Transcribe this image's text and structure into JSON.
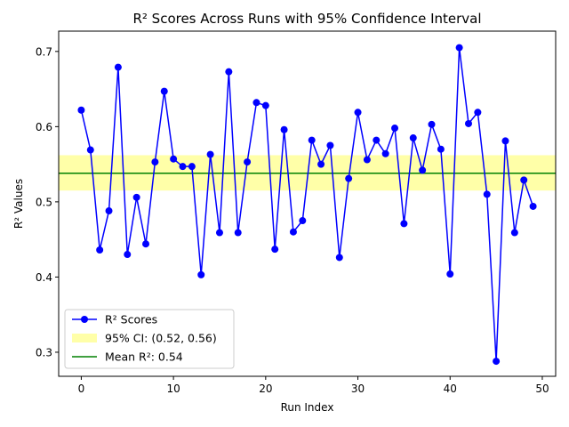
{
  "chart_data": {
    "type": "line",
    "title": "R² Scores Across Runs with 95% Confidence Interval",
    "xlabel": "Run Index",
    "ylabel": "R² Values",
    "xlim": [
      -2.45,
      51.45
    ],
    "ylim": [
      0.268,
      0.727
    ],
    "xticks": [
      0,
      10,
      20,
      30,
      40,
      50
    ],
    "yticks": [
      0.3,
      0.4,
      0.5,
      0.6,
      0.7
    ],
    "grid": false,
    "legend_position": "lower-left",
    "series": [
      {
        "name": "R² Scores",
        "color": "#0000ff",
        "marker": "circle",
        "x": [
          0,
          1,
          2,
          3,
          4,
          5,
          6,
          7,
          8,
          9,
          10,
          11,
          12,
          13,
          14,
          15,
          16,
          17,
          18,
          19,
          20,
          21,
          22,
          23,
          24,
          25,
          26,
          27,
          28,
          29,
          30,
          31,
          32,
          33,
          34,
          35,
          36,
          37,
          38,
          39,
          40,
          41,
          42,
          43,
          44,
          45,
          46,
          47,
          48,
          49
        ],
        "values": [
          0.622,
          0.569,
          0.436,
          0.488,
          0.679,
          0.43,
          0.506,
          0.444,
          0.553,
          0.647,
          0.557,
          0.547,
          0.547,
          0.403,
          0.563,
          0.459,
          0.673,
          0.459,
          0.553,
          0.632,
          0.628,
          0.437,
          0.596,
          0.46,
          0.475,
          0.582,
          0.55,
          0.575,
          0.426,
          0.531,
          0.619,
          0.556,
          0.582,
          0.564,
          0.598,
          0.471,
          0.585,
          0.542,
          0.603,
          0.57,
          0.404,
          0.705,
          0.604,
          0.619,
          0.51,
          0.288,
          0.581,
          0.459,
          0.529,
          0.494
        ]
      }
    ],
    "confidence_interval": {
      "label": "95% CI: (0.52, 0.56)",
      "lower": 0.515,
      "upper": 0.562,
      "color": "#ffff99"
    },
    "mean_line": {
      "label": "Mean R²: 0.54",
      "value": 0.538,
      "color": "#008000"
    }
  }
}
